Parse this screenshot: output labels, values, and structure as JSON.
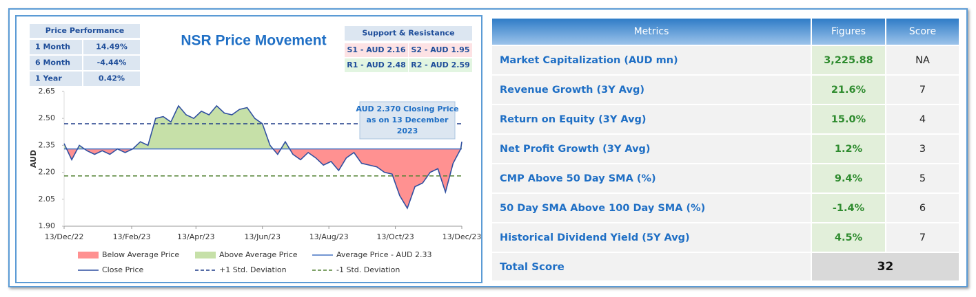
{
  "chart_data": {
    "type": "line",
    "title": "NSR Price Movement",
    "y_label": "AUD",
    "x": [
      "2022-12-13",
      "2022-12-20",
      "2022-12-27",
      "2023-01-03",
      "2023-01-10",
      "2023-01-17",
      "2023-01-24",
      "2023-01-31",
      "2023-02-07",
      "2023-02-14",
      "2023-02-21",
      "2023-02-28",
      "2023-03-07",
      "2023-03-14",
      "2023-03-21",
      "2023-03-28",
      "2023-04-04",
      "2023-04-11",
      "2023-04-18",
      "2023-04-25",
      "2023-05-02",
      "2023-05-09",
      "2023-05-16",
      "2023-05-23",
      "2023-05-30",
      "2023-06-06",
      "2023-06-13",
      "2023-06-20",
      "2023-06-27",
      "2023-07-04",
      "2023-07-11",
      "2023-07-18",
      "2023-07-25",
      "2023-08-01",
      "2023-08-08",
      "2023-08-15",
      "2023-08-22",
      "2023-08-29",
      "2023-09-05",
      "2023-09-12",
      "2023-09-19",
      "2023-09-26",
      "2023-10-03",
      "2023-10-10",
      "2023-10-17",
      "2023-10-24",
      "2023-10-31",
      "2023-11-07",
      "2023-11-14",
      "2023-11-21",
      "2023-11-28",
      "2023-12-05",
      "2023-12-12",
      "2023-12-13"
    ],
    "series": [
      {
        "name": "Close Price",
        "color": "#2f4fa0",
        "values": [
          2.36,
          2.27,
          2.35,
          2.32,
          2.3,
          2.32,
          2.3,
          2.33,
          2.31,
          2.33,
          2.37,
          2.35,
          2.5,
          2.51,
          2.48,
          2.57,
          2.52,
          2.5,
          2.54,
          2.52,
          2.57,
          2.53,
          2.52,
          2.55,
          2.56,
          2.5,
          2.47,
          2.35,
          2.3,
          2.37,
          2.3,
          2.27,
          2.31,
          2.28,
          2.24,
          2.26,
          2.21,
          2.28,
          2.31,
          2.25,
          2.24,
          2.23,
          2.2,
          2.19,
          2.07,
          2.0,
          2.12,
          2.14,
          2.2,
          2.22,
          2.09,
          2.25,
          2.33,
          2.37
        ]
      }
    ],
    "reference_lines": [
      {
        "name": "Average Price - AUD 2.33",
        "value": 2.33,
        "color": "#4472c4",
        "style": "solid"
      },
      {
        "name": "+1 Std. Deviation",
        "value": 2.47,
        "color": "#1f3c88",
        "style": "dashed"
      },
      {
        "name": "-1 Std. Deviation",
        "value": 2.18,
        "color": "#548235",
        "style": "dashed"
      }
    ],
    "fills": [
      {
        "name": "Below Average Price",
        "color": "#ff9191",
        "side": "below"
      },
      {
        "name": "Above Average Price",
        "color": "#c6e0a8",
        "side": "above"
      }
    ],
    "ylim": [
      1.9,
      2.65
    ],
    "yticks": [
      {
        "value": 1.9,
        "label": "1.90"
      },
      2.05,
      {
        "value": 2.2,
        "label": "2.20"
      },
      2.35,
      {
        "value": 2.5,
        "label": "2.50"
      },
      2.65
    ],
    "xlim": [
      "2022-12-13",
      "2023-12-13"
    ],
    "xticks": [
      {
        "value": "2022-12-13",
        "label": "13/Dec/22"
      },
      {
        "value": "2023-02-13",
        "label": "13/Feb/23"
      },
      {
        "value": "2023-04-13",
        "label": "13/Apr/23"
      },
      {
        "value": "2023-06-13",
        "label": "13/Jun/23"
      },
      {
        "value": "2023-08-13",
        "label": "13/Aug/23"
      },
      {
        "value": "2023-10-13",
        "label": "13/Oct/23"
      },
      {
        "value": "2023-12-13",
        "label": "13/Dec/23"
      }
    ],
    "annotation": [
      "AUD 2.370 Closing Price",
      "as on 13 December",
      "2023"
    ]
  },
  "price_performance": {
    "title": "Price Performance",
    "rows": [
      [
        "1 Month",
        "14.49%"
      ],
      [
        "6 Month",
        "-4.44%"
      ],
      [
        "1 Year",
        "0.42%"
      ]
    ]
  },
  "support_resistance": {
    "title": "Support & Resistance",
    "cells": [
      "S1 - AUD 2.16",
      "S2 - AUD 1.95",
      "R1 - AUD 2.48",
      "R2 - AUD 2.59"
    ]
  },
  "metrics_table": {
    "headers": [
      "Metrics",
      "Figures",
      "Score"
    ],
    "rows": [
      [
        "Market Capitalization (AUD mn)",
        "3,225.88",
        "NA"
      ],
      [
        "Revenue Growth (3Y Avg)",
        "21.6%",
        "7"
      ],
      [
        "Return on Equity (3Y Avg)",
        "15.0%",
        "4"
      ],
      [
        "Net Profit Growth (3Y Avg)",
        "1.2%",
        "3"
      ],
      [
        "CMP Above 50 Day SMA (%)",
        "9.4%",
        "5"
      ],
      [
        "50 Day SMA Above 100 Day SMA (%)",
        "-1.4%",
        "6"
      ],
      [
        "Historical Dividend Yield (5Y Avg)",
        "4.5%",
        "7"
      ]
    ],
    "total": [
      "Total Score",
      "32"
    ]
  }
}
